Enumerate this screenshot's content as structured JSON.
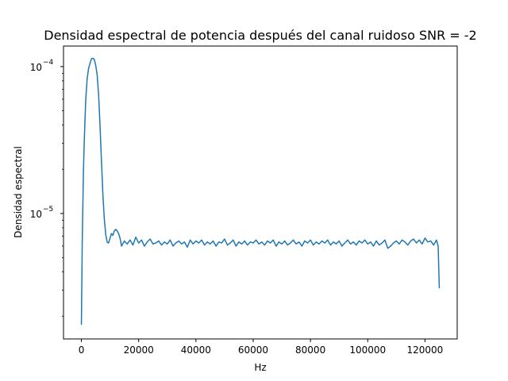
{
  "chart_data": {
    "type": "line",
    "title": "Densidad espectral de potencia después del canal ruidoso SNR = -2",
    "xlabel": "Hz",
    "ylabel": "Densidad espectral",
    "xlim": [
      -6250,
      131250
    ],
    "ylim": [
      1.4e-06,
      0.000138
    ],
    "yscale": "log",
    "grid": false,
    "x_ticks": [
      {
        "value": 0,
        "label": "0"
      },
      {
        "value": 20000,
        "label": "20000"
      },
      {
        "value": 40000,
        "label": "40000"
      },
      {
        "value": 60000,
        "label": "60000"
      },
      {
        "value": 80000,
        "label": "80000"
      },
      {
        "value": 100000,
        "label": "100000"
      },
      {
        "value": 120000,
        "label": "120000"
      }
    ],
    "y_ticks": [
      {
        "value": 1e-05,
        "base": "10",
        "exp": "−5"
      },
      {
        "value": 0.0001,
        "base": "10",
        "exp": "−4"
      }
    ],
    "series": [
      {
        "color": "#1f77b4",
        "x": [
          0,
          300,
          700,
          1000,
          1500,
          2000,
          2500,
          3000,
          3500,
          4000,
          4500,
          5000,
          5500,
          6000,
          6500,
          7000,
          7500,
          8000,
          8500,
          9000,
          9500,
          10000,
          10500,
          11000,
          11500,
          12000,
          12500,
          13000,
          13500,
          14000,
          15000,
          16000,
          17000,
          18000,
          19000,
          20000,
          21000,
          22000,
          23000,
          24000,
          25000,
          26000,
          27000,
          28000,
          29000,
          30000,
          31000,
          32000,
          33000,
          34000,
          35000,
          36000,
          37000,
          38000,
          39000,
          40000,
          41000,
          42000,
          43000,
          44000,
          45000,
          46000,
          47000,
          48000,
          49000,
          50000,
          51000,
          52000,
          53000,
          54000,
          55000,
          56000,
          57000,
          58000,
          59000,
          60000,
          61000,
          62000,
          63000,
          64000,
          65000,
          66000,
          67000,
          68000,
          69000,
          70000,
          71000,
          72000,
          73000,
          74000,
          75000,
          76000,
          77000,
          78000,
          79000,
          80000,
          81000,
          82000,
          83000,
          84000,
          85000,
          86000,
          87000,
          88000,
          89000,
          90000,
          91000,
          92000,
          93000,
          94000,
          95000,
          96000,
          97000,
          98000,
          99000,
          100000,
          101000,
          102000,
          103000,
          104000,
          105000,
          106000,
          107000,
          108000,
          109000,
          110000,
          111000,
          112000,
          113000,
          114000,
          115000,
          116000,
          117000,
          118000,
          119000,
          120000,
          121000,
          122000,
          123000,
          124000,
          124600,
          125000
        ],
        "y": [
          1.75e-06,
          6.5e-06,
          1.9e-05,
          3.1e-05,
          5.9e-05,
          8.2e-05,
          9.7e-05,
          0.000105,
          0.000113,
          0.000114,
          0.000112,
          0.000102,
          8.8e-05,
          6.5e-05,
          4e-05,
          2.3e-05,
          1.35e-05,
          9.2e-06,
          7.2e-06,
          6.4e-06,
          6.3e-06,
          6.8e-06,
          7.3e-06,
          7.1e-06,
          7.6e-06,
          7.8e-06,
          7.6e-06,
          7.3e-06,
          6.8e-06,
          6e-06,
          6.5e-06,
          6.2e-06,
          6.6e-06,
          6.1e-06,
          6.9e-06,
          6.3e-06,
          6.6e-06,
          6e-06,
          6.4e-06,
          6.7e-06,
          6.2e-06,
          6.3e-06,
          6.5e-06,
          6.1e-06,
          6.4e-06,
          6.2e-06,
          6.6e-06,
          6e-06,
          6.3e-06,
          6.5e-06,
          6.2e-06,
          6.4e-06,
          5.9e-06,
          6.6e-06,
          6.2e-06,
          6.5e-06,
          6.3e-06,
          6.6e-06,
          6.1e-06,
          6.4e-06,
          6.2e-06,
          6.5e-06,
          6e-06,
          6.4e-06,
          6.3e-06,
          6.7e-06,
          6.1e-06,
          6.3e-06,
          6.6e-06,
          6e-06,
          6.4e-06,
          6.2e-06,
          6.5e-06,
          6.1e-06,
          6.4e-06,
          6.3e-06,
          6.6e-06,
          6.2e-06,
          6.4e-06,
          6.1e-06,
          6.5e-06,
          6.3e-06,
          6.6e-06,
          6e-06,
          6.4e-06,
          6.2e-06,
          6.5e-06,
          6.1e-06,
          6.3e-06,
          6.6e-06,
          6.2e-06,
          6.4e-06,
          6e-06,
          6.5e-06,
          6.3e-06,
          6.6e-06,
          6.1e-06,
          6.4e-06,
          6.2e-06,
          6.5e-06,
          6.3e-06,
          6.6e-06,
          6.1e-06,
          6.4e-06,
          6.2e-06,
          6.5e-06,
          6e-06,
          6.3e-06,
          6.6e-06,
          6.2e-06,
          6.4e-06,
          6.1e-06,
          6.5e-06,
          6.3e-06,
          6.6e-06,
          6.2e-06,
          6.4e-06,
          6e-06,
          6.5e-06,
          6.1e-06,
          6.3e-06,
          6.6e-06,
          5.8e-06,
          6e-06,
          6.3e-06,
          6.5e-06,
          6.2e-06,
          6.6e-06,
          6.4e-06,
          6.1e-06,
          6.5e-06,
          6.7e-06,
          6.3e-06,
          6.6e-06,
          6.2e-06,
          6.8e-06,
          6.4e-06,
          6.5e-06,
          6.1e-06,
          6.6e-06,
          6e-06,
          3.1e-06
        ]
      }
    ]
  }
}
